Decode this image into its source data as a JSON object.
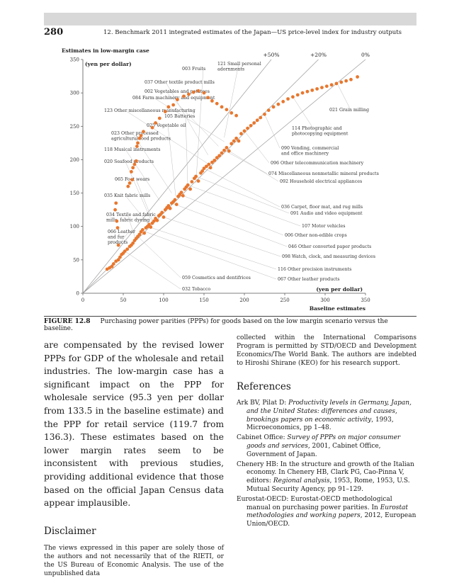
{
  "page": {
    "number": "280",
    "running_head": "12.  Benchmark 2011 integrated estimates of the Japan—US price-level index for industry outputs"
  },
  "figure": {
    "label": "FIGURE 12.8",
    "caption": "Purchasing power parities (PPPs) for goods based on the low margin scenario versus the baseline."
  },
  "chart_data": {
    "type": "scatter",
    "ylabel": "Estimates in low-margin case",
    "ylabel_unit": "(yen per dollar)",
    "xlabel": "Baseline estimates",
    "xlabel_unit": "(yen per dollar)",
    "xlim": [
      0,
      350
    ],
    "ylim": [
      0,
      350
    ],
    "x_ticks": [
      "0",
      "50",
      "100",
      "150",
      "200",
      "250",
      "300",
      "350"
    ],
    "y_ticks": [
      "0",
      "50",
      "100",
      "150",
      "200",
      "250",
      "300",
      "350"
    ],
    "grid": false,
    "reference_lines": [
      {
        "label": "+50%",
        "slope": 1.5
      },
      {
        "label": "+20%",
        "slope": 1.2
      },
      {
        "label": "0%",
        "slope": 1.0
      }
    ],
    "points": [
      [
        30,
        36
      ],
      [
        33,
        38
      ],
      [
        36,
        40
      ],
      [
        38,
        44
      ],
      [
        41,
        48
      ],
      [
        44,
        50
      ],
      [
        46,
        54
      ],
      [
        48,
        58
      ],
      [
        50,
        60
      ],
      [
        52,
        63
      ],
      [
        55,
        66
      ],
      [
        58,
        70
      ],
      [
        60,
        72
      ],
      [
        62,
        75
      ],
      [
        64,
        79
      ],
      [
        66,
        82
      ],
      [
        68,
        85
      ],
      [
        70,
        88
      ],
      [
        72,
        92
      ],
      [
        74,
        95
      ],
      [
        76,
        90
      ],
      [
        78,
        98
      ],
      [
        80,
        100
      ],
      [
        82,
        103
      ],
      [
        84,
        99
      ],
      [
        86,
        105
      ],
      [
        88,
        108
      ],
      [
        90,
        112
      ],
      [
        92,
        109
      ],
      [
        94,
        116
      ],
      [
        96,
        118
      ],
      [
        98,
        121
      ],
      [
        100,
        114
      ],
      [
        102,
        125
      ],
      [
        104,
        128
      ],
      [
        106,
        131
      ],
      [
        108,
        127
      ],
      [
        110,
        135
      ],
      [
        112,
        137
      ],
      [
        114,
        140
      ],
      [
        116,
        133
      ],
      [
        118,
        145
      ],
      [
        120,
        148
      ],
      [
        122,
        151
      ],
      [
        124,
        146
      ],
      [
        126,
        156
      ],
      [
        128,
        159
      ],
      [
        130,
        162
      ],
      [
        133,
        156
      ],
      [
        135,
        167
      ],
      [
        138,
        172
      ],
      [
        140,
        175
      ],
      [
        143,
        168
      ],
      [
        146,
        180
      ],
      [
        148,
        183
      ],
      [
        150,
        187
      ],
      [
        153,
        190
      ],
      [
        156,
        193
      ],
      [
        158,
        188
      ],
      [
        160,
        196
      ],
      [
        163,
        199
      ],
      [
        166,
        203
      ],
      [
        169,
        206
      ],
      [
        172,
        210
      ],
      [
        175,
        214
      ],
      [
        178,
        218
      ],
      [
        181,
        213
      ],
      [
        184,
        224
      ],
      [
        187,
        228
      ],
      [
        190,
        232
      ],
      [
        193,
        228
      ],
      [
        196,
        239
      ],
      [
        200,
        243
      ],
      [
        204,
        247
      ],
      [
        208,
        251
      ],
      [
        212,
        255
      ],
      [
        216,
        259
      ],
      [
        220,
        263
      ],
      [
        225,
        268
      ],
      [
        230,
        274
      ],
      [
        236,
        279
      ],
      [
        242,
        283
      ],
      [
        248,
        287
      ],
      [
        254,
        291
      ],
      [
        260,
        294
      ],
      [
        266,
        297
      ],
      [
        272,
        300
      ],
      [
        278,
        302
      ],
      [
        284,
        304
      ],
      [
        290,
        306
      ],
      [
        296,
        308
      ],
      [
        302,
        310
      ],
      [
        308,
        312
      ],
      [
        314,
        314
      ],
      [
        320,
        316
      ],
      [
        326,
        318
      ],
      [
        332,
        320
      ],
      [
        340,
        324
      ],
      [
        40,
        125
      ],
      [
        41,
        135
      ],
      [
        42,
        108
      ],
      [
        43,
        98
      ],
      [
        44,
        72
      ],
      [
        56,
        160
      ],
      [
        58,
        165
      ],
      [
        61,
        170
      ],
      [
        60,
        182
      ],
      [
        62,
        188
      ],
      [
        64,
        193
      ],
      [
        66,
        198
      ],
      [
        67,
        220
      ],
      [
        68,
        225
      ],
      [
        70,
        232
      ],
      [
        72,
        236
      ],
      [
        75,
        242
      ],
      [
        86,
        248
      ],
      [
        90,
        255
      ],
      [
        95,
        262
      ],
      [
        102,
        272
      ],
      [
        106,
        279
      ],
      [
        112,
        282
      ],
      [
        117,
        290
      ],
      [
        125,
        295
      ],
      [
        131,
        298
      ],
      [
        137,
        301
      ],
      [
        143,
        303
      ],
      [
        150,
        300
      ],
      [
        155,
        293
      ],
      [
        160,
        288
      ],
      [
        166,
        284
      ],
      [
        172,
        279
      ],
      [
        178,
        275
      ],
      [
        184,
        270
      ],
      [
        190,
        266
      ]
    ],
    "annotations": [
      "003 Fruits",
      "121 Small personal adornments",
      "037 Other textile product mills",
      "002 Vegetables and potatoes",
      "084 Farm machinery and equipment",
      "123 Other miscellaneous manufacturing",
      "105 Batteries",
      "025 Vegetable oil",
      "023 Other processed agricultural food products",
      "118 Musical instruments",
      "020 Seafood products",
      "065 Foot wears",
      "035 Knit fabric mills",
      "034 Textile and fabric mills, fabric dyeing",
      "066 Leather and fur products",
      "021 Grain milling",
      "114 Photographic and photocopying equipment",
      "090 Vending, commercial and office machinery",
      "096 Other telecommunication machinery",
      "074 Miscellaneous nonmetallic mineral products",
      "092 Household electrical appliances",
      "036 Carpet, floor mat, and rug mills",
      "091 Audio and video equipment",
      "107 Motor vehicles",
      "006 Other non-edible crops",
      "046 Other converted paper products",
      "098 Watch, clock, and measuring devices",
      "116 Other precision instruments",
      "067 Other leather products",
      "059 Cosmetics and dentifrices",
      "032 Tobacco"
    ],
    "point_color": "#e8772e"
  },
  "body": {
    "left_paragraph": "are compensated by the revised lower PPPs for GDP of the wholesale and retail industries. The low-margin case has a significant impact on the PPP for wholesale service (95.3 yen per dollar from 133.5 in the baseline estimate) and the PPP for retail service (119.7 from 136.3). These estimates based on the lower margin rates seem to be inconsistent with previous studies, providing additional evidence that those based on the official Japan Census data appear implausible.",
    "disclaimer_heading": "Disclaimer",
    "disclaimer_text": "The views expressed in this paper are solely those of the authors and not necessarily that of the RIETI, or the US Bureau of Economic Analysis. The use of the unpublished data",
    "right_paragraph": "collected within the International Comparisons Program is permitted by STD/OECD and Development Economics/The World Bank. The authors are indebted to Hiroshi Shirane (KEO) for his research support.",
    "references_heading": "References"
  },
  "references": [
    {
      "pre": "Ark BV, Pilat D: ",
      "title": "Productivity levels in Germany, Japan, and the United States: differences and causes, brookings papers on economic activity",
      "post": ", 1993, Microeconomics, pp 1–48."
    },
    {
      "pre": "Cabinet Office: ",
      "title": "Survey of PPPs on major consumer goods and services",
      "post": ", 2001, Cabinet Office, Government of Japan."
    },
    {
      "pre": "Chenery HB: In the structure and growth of the Italian economy. In Chenery HB, Clark PG, Cao-Pinna V, editors: ",
      "title": "Regional analysis",
      "post": ", 1953, Rome, 1953, U.S. Mutual Security Agency, pp 91–129."
    },
    {
      "pre": "Eurostat-OECD: Eurostat-OECD methodological manual on purchasing power parities. In ",
      "title": "Eurostat methodologies and working papers",
      "post": ", 2012, European Union/OECD."
    }
  ]
}
